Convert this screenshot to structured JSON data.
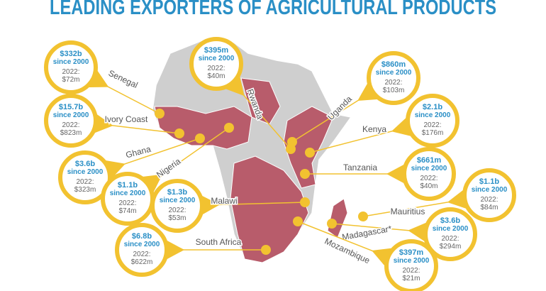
{
  "title": "LEADING EXPORTERS OF AGRICULTURAL PRODUCTS",
  "callouts": [
    {
      "country": "Senegal",
      "total": "$332b",
      "since": "since 2000",
      "year": "2022:",
      "recent": "$72m"
    },
    {
      "country": "Ivory Coast",
      "total": "$15.7b",
      "since": "since 2000",
      "year": "2022:",
      "recent": "$823m"
    },
    {
      "country": "Ghana",
      "total": "$3.6b",
      "since": "since 2000",
      "year": "2022:",
      "recent": "$323m"
    },
    {
      "country": "Nigeria",
      "total": "$1.1b",
      "since": "since 2000",
      "year": "2022:",
      "recent": "$74m"
    },
    {
      "country": "Malawi",
      "total": "$1.3b",
      "since": "since 2000",
      "year": "2022:",
      "recent": "$53m"
    },
    {
      "country": "South Africa",
      "total": "$6.8b",
      "since": "since 2000",
      "year": "2022:",
      "recent": "$622m"
    },
    {
      "country": "Rwanda",
      "total": "$395m",
      "since": "since 2000",
      "year": "2022:",
      "recent": "$40m"
    },
    {
      "country": "Uganda",
      "total": "$860m",
      "since": "since 2000",
      "year": "2022:",
      "recent": "$103m"
    },
    {
      "country": "Kenya",
      "total": "$2.1b",
      "since": "since 2000",
      "year": "2022:",
      "recent": "$176m"
    },
    {
      "country": "Tanzania",
      "total": "$661m",
      "since": "since 2000",
      "year": "2022:",
      "recent": "$40m"
    },
    {
      "country": "Mauritius",
      "total": "$1.1b",
      "since": "since 2000",
      "year": "2022:",
      "recent": "$84m"
    },
    {
      "country": "Madagascar*",
      "total": "$3.6b",
      "since": "since 2000",
      "year": "2022:",
      "recent": "$294m"
    },
    {
      "country": "Mozambique",
      "total": "$397m",
      "since": "since 2000",
      "year": "2022:",
      "recent": "$21m"
    }
  ]
}
